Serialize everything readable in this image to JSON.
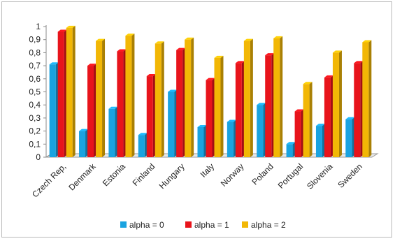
{
  "chart_data": {
    "type": "bar",
    "title": "",
    "xlabel": "",
    "ylabel": "",
    "ylim": [
      0,
      1
    ],
    "yticks": [
      "0",
      "0,1",
      "0,2",
      "0,3",
      "0,4",
      "0,5",
      "0,6",
      "0,7",
      "0,8",
      "0,9",
      "1"
    ],
    "categories": [
      "Czech Rep,",
      "Denmark",
      "Estonia",
      "Finland",
      "Hungary",
      "Italy",
      "Norway",
      "Poland",
      "Portugal",
      "Slovenia",
      "Sweden"
    ],
    "series": [
      {
        "name": "alpha = 0",
        "color": "#1aa3e0",
        "values": [
          0.71,
          0.2,
          0.37,
          0.17,
          0.5,
          0.23,
          0.27,
          0.4,
          0.1,
          0.24,
          0.29
        ]
      },
      {
        "name": "alpha = 1",
        "color": "#e8141b",
        "values": [
          0.96,
          0.7,
          0.81,
          0.62,
          0.82,
          0.59,
          0.72,
          0.78,
          0.35,
          0.61,
          0.72
        ]
      },
      {
        "name": "alpha = 2",
        "color": "#f2b705",
        "values": [
          0.99,
          0.89,
          0.93,
          0.87,
          0.9,
          0.76,
          0.89,
          0.91,
          0.56,
          0.8,
          0.88
        ]
      }
    ],
    "legend_position": "bottom",
    "grid": false,
    "style": "3d-bars"
  }
}
